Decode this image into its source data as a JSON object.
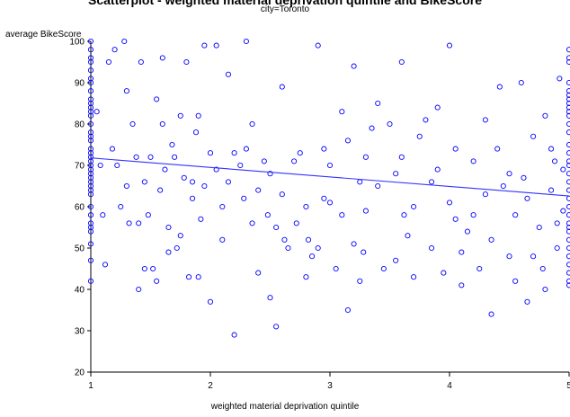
{
  "chart_data": {
    "type": "scatter",
    "title": "Scatterplot - weighted material deprivation quintile and BikeScore",
    "subtitle": "city=Toronto",
    "xlabel": "weighted material deprivation quintile",
    "ylabel": "average BikeScore",
    "xlim": [
      1,
      5
    ],
    "ylim": [
      20,
      100
    ],
    "xticks": [
      "1",
      "2",
      "3",
      "4",
      "5"
    ],
    "yticks": [
      "20",
      "30",
      "40",
      "50",
      "60",
      "70",
      "80",
      "90",
      "100"
    ],
    "marker_color": "#0000ff",
    "fit_line_color": "#3333ff",
    "fit_line": {
      "x": [
        1,
        5
      ],
      "y": [
        71.8,
        62.6
      ]
    },
    "points": [
      [
        1,
        100
      ],
      [
        1,
        98
      ],
      [
        1,
        96
      ],
      [
        1,
        95
      ],
      [
        1,
        93
      ],
      [
        1,
        91
      ],
      [
        1,
        90
      ],
      [
        1,
        88
      ],
      [
        1,
        86
      ],
      [
        1,
        85
      ],
      [
        1,
        84
      ],
      [
        1,
        83
      ],
      [
        1,
        82
      ],
      [
        1,
        80
      ],
      [
        1,
        78
      ],
      [
        1,
        77
      ],
      [
        1,
        76
      ],
      [
        1,
        74
      ],
      [
        1,
        73
      ],
      [
        1,
        72
      ],
      [
        1,
        71
      ],
      [
        1,
        70
      ],
      [
        1,
        69
      ],
      [
        1,
        68
      ],
      [
        1,
        67
      ],
      [
        1,
        66
      ],
      [
        1,
        65
      ],
      [
        1,
        64
      ],
      [
        1,
        63
      ],
      [
        1,
        60
      ],
      [
        1,
        58
      ],
      [
        1,
        56
      ],
      [
        1,
        55
      ],
      [
        1,
        54
      ],
      [
        1,
        51
      ],
      [
        1,
        47
      ],
      [
        1,
        42
      ],
      [
        5,
        98
      ],
      [
        5,
        96
      ],
      [
        5,
        95
      ],
      [
        5,
        90
      ],
      [
        5,
        88
      ],
      [
        5,
        87
      ],
      [
        5,
        86
      ],
      [
        5,
        85
      ],
      [
        5,
        84
      ],
      [
        5,
        83
      ],
      [
        5,
        82
      ],
      [
        5,
        80
      ],
      [
        5,
        78
      ],
      [
        5,
        75
      ],
      [
        5,
        73
      ],
      [
        5,
        71
      ],
      [
        5,
        70
      ],
      [
        5,
        68
      ],
      [
        5,
        66
      ],
      [
        5,
        64
      ],
      [
        5,
        62
      ],
      [
        5,
        60
      ],
      [
        5,
        58
      ],
      [
        5,
        56
      ],
      [
        5,
        55
      ],
      [
        5,
        54
      ],
      [
        5,
        52
      ],
      [
        5,
        50
      ],
      [
        5,
        48
      ],
      [
        5,
        46
      ],
      [
        5,
        44
      ],
      [
        5,
        42
      ],
      [
        5,
        41
      ],
      [
        1.05,
        83
      ],
      [
        1.08,
        70
      ],
      [
        1.1,
        58
      ],
      [
        1.12,
        46
      ],
      [
        1.15,
        95
      ],
      [
        1.18,
        74
      ],
      [
        1.2,
        98
      ],
      [
        1.22,
        70
      ],
      [
        1.25,
        60
      ],
      [
        1.28,
        100
      ],
      [
        1.3,
        88
      ],
      [
        1.3,
        65
      ],
      [
        1.32,
        56
      ],
      [
        1.35,
        80
      ],
      [
        1.38,
        72
      ],
      [
        1.4,
        40
      ],
      [
        1.4,
        56
      ],
      [
        1.42,
        95
      ],
      [
        1.45,
        66
      ],
      [
        1.48,
        58
      ],
      [
        1.5,
        72
      ],
      [
        1.52,
        45
      ],
      [
        1.55,
        86
      ],
      [
        1.55,
        42
      ],
      [
        1.58,
        64
      ],
      [
        1.6,
        96
      ],
      [
        1.62,
        69
      ],
      [
        1.65,
        55
      ],
      [
        1.65,
        49
      ],
      [
        1.68,
        75
      ],
      [
        1.7,
        72
      ],
      [
        1.72,
        50
      ],
      [
        1.75,
        82
      ],
      [
        1.75,
        53
      ],
      [
        1.78,
        67
      ],
      [
        1.8,
        95
      ],
      [
        1.82,
        43
      ],
      [
        1.85,
        62
      ],
      [
        1.88,
        78
      ],
      [
        1.9,
        82
      ],
      [
        1.9,
        43
      ],
      [
        1.92,
        57
      ],
      [
        1.95,
        65
      ],
      [
        1.95,
        99
      ],
      [
        2.0,
        73
      ],
      [
        2.05,
        99
      ],
      [
        2.05,
        69
      ],
      [
        2.1,
        60
      ],
      [
        2.1,
        52
      ],
      [
        2.15,
        92
      ],
      [
        2.15,
        66
      ],
      [
        2.2,
        73
      ],
      [
        2.2,
        29
      ],
      [
        2.25,
        70
      ],
      [
        2.28,
        62
      ],
      [
        2.3,
        100
      ],
      [
        2.35,
        80
      ],
      [
        2.35,
        56
      ],
      [
        2.4,
        64
      ],
      [
        2.4,
        44
      ],
      [
        2.45,
        71
      ],
      [
        2.48,
        58
      ],
      [
        2.5,
        38
      ],
      [
        2.5,
        68
      ],
      [
        2.55,
        31
      ],
      [
        2.6,
        89
      ],
      [
        2.6,
        63
      ],
      [
        2.62,
        52
      ],
      [
        2.65,
        50
      ],
      [
        2.7,
        71
      ],
      [
        2.72,
        56
      ],
      [
        2.75,
        73
      ],
      [
        2.8,
        43
      ],
      [
        2.82,
        52
      ],
      [
        2.85,
        48
      ],
      [
        2.9,
        99
      ],
      [
        2.9,
        50
      ],
      [
        2.95,
        74
      ],
      [
        2.95,
        62
      ],
      [
        3.0,
        61
      ],
      [
        3.05,
        45
      ],
      [
        3.1,
        83
      ],
      [
        3.15,
        76
      ],
      [
        3.2,
        94
      ],
      [
        3.2,
        51
      ],
      [
        3.25,
        66
      ],
      [
        3.28,
        49
      ],
      [
        3.3,
        59
      ],
      [
        3.3,
        72
      ],
      [
        3.35,
        79
      ],
      [
        3.4,
        65
      ],
      [
        3.45,
        45
      ],
      [
        3.5,
        80
      ],
      [
        3.55,
        47
      ],
      [
        3.6,
        95
      ],
      [
        3.6,
        72
      ],
      [
        3.62,
        58
      ],
      [
        3.65,
        53
      ],
      [
        3.7,
        43
      ],
      [
        3.75,
        77
      ],
      [
        3.8,
        81
      ],
      [
        3.85,
        66
      ],
      [
        3.9,
        69
      ],
      [
        3.95,
        44
      ],
      [
        4.0,
        61
      ],
      [
        4.0,
        99
      ],
      [
        4.05,
        57
      ],
      [
        4.1,
        49
      ],
      [
        4.15,
        54
      ],
      [
        4.2,
        71
      ],
      [
        4.25,
        45
      ],
      [
        4.3,
        63
      ],
      [
        4.35,
        52
      ],
      [
        4.4,
        74
      ],
      [
        4.42,
        89
      ],
      [
        4.45,
        65
      ],
      [
        4.5,
        48
      ],
      [
        4.55,
        58
      ],
      [
        4.6,
        90
      ],
      [
        4.62,
        67
      ],
      [
        4.65,
        37
      ],
      [
        4.7,
        77
      ],
      [
        4.75,
        55
      ],
      [
        4.78,
        45
      ],
      [
        4.8,
        82
      ],
      [
        4.85,
        64
      ],
      [
        4.88,
        71
      ],
      [
        4.9,
        50
      ],
      [
        4.92,
        91
      ],
      [
        4.95,
        59
      ],
      [
        1.45,
        45
      ],
      [
        1.6,
        80
      ],
      [
        1.85,
        66
      ],
      [
        2.0,
        37
      ],
      [
        2.3,
        74
      ],
      [
        2.55,
        55
      ],
      [
        2.8,
        60
      ],
      [
        3.0,
        70
      ],
      [
        3.1,
        58
      ],
      [
        3.15,
        35
      ],
      [
        3.25,
        42
      ],
      [
        3.4,
        85
      ],
      [
        3.55,
        68
      ],
      [
        3.7,
        60
      ],
      [
        3.85,
        50
      ],
      [
        3.9,
        84
      ],
      [
        4.05,
        74
      ],
      [
        4.1,
        41
      ],
      [
        4.2,
        58
      ],
      [
        4.3,
        81
      ],
      [
        4.35,
        34
      ],
      [
        4.5,
        68
      ],
      [
        4.55,
        42
      ],
      [
        4.65,
        62
      ],
      [
        4.7,
        48
      ],
      [
        4.8,
        40
      ],
      [
        4.85,
        74
      ],
      [
        4.9,
        56
      ],
      [
        4.95,
        69
      ]
    ]
  }
}
